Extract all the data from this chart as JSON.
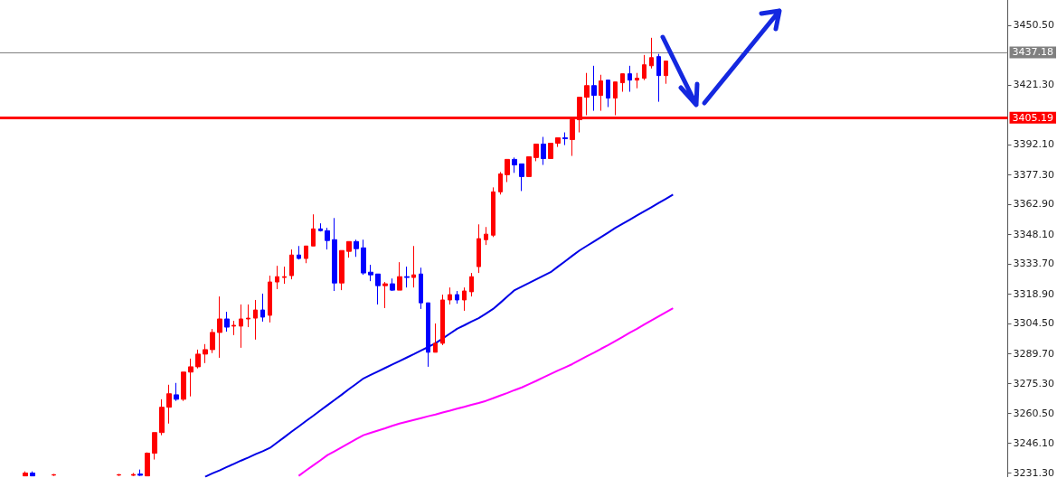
{
  "chart_data": {
    "type": "candlestick",
    "categories": [
      null,
      null,
      null,
      null,
      null,
      null,
      null,
      null,
      null,
      null,
      null,
      null,
      null,
      null,
      null,
      null,
      null,
      null,
      null,
      null,
      null,
      null,
      null,
      null,
      null,
      null,
      null,
      null,
      null,
      null,
      null,
      null,
      null,
      null,
      null,
      null,
      null,
      null,
      null,
      null,
      null,
      null,
      null,
      null,
      null,
      null,
      null,
      null,
      null,
      null,
      null,
      null,
      null,
      null,
      null,
      null,
      null,
      null,
      null,
      null,
      null,
      null,
      null,
      null,
      null,
      null,
      null,
      null,
      null,
      null,
      null,
      null,
      null,
      null,
      null,
      null,
      null,
      null,
      null,
      null,
      null,
      null,
      null,
      null,
      null,
      null,
      null,
      null,
      null,
      null,
      null,
      null,
      null,
      null,
      null,
      null,
      null,
      null,
      null,
      null,
      null,
      null,
      null,
      null,
      null,
      null,
      null,
      null,
      null,
      null,
      null,
      null,
      null,
      null,
      null,
      null,
      null,
      null,
      null,
      null,
      null,
      null,
      null,
      null,
      null,
      null,
      null,
      null,
      null,
      null,
      null,
      null,
      null,
      null,
      null,
      null,
      null,
      null,
      null,
      null
    ],
    "ohlc": [
      null,
      null,
      null,
      [
        3229.9,
        3232.1,
        3229.9,
        3231.3
      ],
      [
        3231.3,
        3232.1,
        3229.9,
        3229.9
      ],
      null,
      null,
      [
        3230.3,
        3230.8,
        3229.9,
        3230.5
      ],
      null,
      null,
      null,
      null,
      null,
      null,
      null,
      null,
      [
        3230.3,
        3230.8,
        3229.9,
        3230.5
      ],
      null,
      [
        3230.2,
        3231.3,
        3229.9,
        3230.6
      ],
      [
        3230.8,
        3233.0,
        3229.9,
        3230.2
      ],
      [
        3229.9,
        3241.4,
        3229.9,
        3241.0
      ],
      [
        3241.0,
        3251.1,
        3237.9,
        3251.1
      ],
      [
        3251.1,
        3267.4,
        3249.8,
        3263.5
      ],
      [
        3263.5,
        3274.5,
        3255.5,
        3270.1
      ],
      [
        3269.6,
        3275.4,
        3266.6,
        3267.4
      ],
      [
        3267.4,
        3280.7,
        3266.6,
        3280.7
      ],
      [
        3280.7,
        3287.3,
        3268.8,
        3283.3
      ],
      [
        3283.3,
        3291.7,
        3282.5,
        3289.5
      ],
      [
        3289.5,
        3294.4,
        3285.1,
        3291.7
      ],
      [
        3291.7,
        3301.8,
        3290.0,
        3300.1
      ],
      [
        3300.1,
        3317.7,
        3287.7,
        3306.7
      ],
      [
        3306.7,
        3310.2,
        3300.5,
        3302.7
      ],
      [
        3303.2,
        3305.8,
        3298.8,
        3303.6
      ],
      [
        3303.2,
        3313.8,
        3292.6,
        3306.7
      ],
      [
        3306.7,
        3313.8,
        3302.7,
        3307.1
      ],
      [
        3307.1,
        3316.0,
        3296.6,
        3311.1
      ],
      [
        3311.1,
        3319.1,
        3305.4,
        3307.6
      ],
      [
        3308.5,
        3327.9,
        3305.0,
        3324.8
      ],
      [
        3324.8,
        3332.7,
        3321.3,
        3327.4
      ],
      [
        3327.0,
        3332.3,
        3323.9,
        3327.4
      ],
      [
        3327.9,
        3340.7,
        3326.1,
        3338.0
      ],
      [
        3338.0,
        3342.4,
        3335.8,
        3336.3
      ],
      [
        3336.3,
        3342.4,
        3334.0,
        3342.4
      ],
      [
        3342.4,
        3357.9,
        3342.4,
        3350.8
      ],
      [
        3350.8,
        3353.5,
        3349.5,
        3349.9
      ],
      [
        3349.9,
        3351.3,
        3340.7,
        3345.1
      ],
      [
        3345.5,
        3356.1,
        3320.4,
        3324.3
      ],
      [
        3324.3,
        3340.2,
        3320.8,
        3340.2
      ],
      [
        3339.8,
        3344.6,
        3336.7,
        3344.6
      ],
      [
        3344.6,
        3345.5,
        3337.1,
        3341.1
      ],
      [
        3341.5,
        3345.5,
        3328.3,
        3329.2
      ],
      [
        3329.6,
        3333.2,
        3325.2,
        3328.3
      ],
      [
        3328.7,
        3328.7,
        3313.8,
        3323.0
      ],
      [
        3323.0,
        3324.8,
        3312.0,
        3323.9
      ],
      [
        3323.9,
        3326.5,
        3320.4,
        3320.8
      ],
      [
        3320.8,
        3334.5,
        3320.8,
        3327.4
      ],
      [
        3327.4,
        3332.3,
        3322.1,
        3327.0
      ],
      [
        3327.0,
        3342.4,
        3322.1,
        3328.3
      ],
      [
        3328.7,
        3331.8,
        3311.6,
        3314.6
      ],
      [
        3314.6,
        3314.6,
        3283.3,
        3290.4
      ],
      [
        3290.4,
        3304.5,
        3290.4,
        3294.8
      ],
      [
        3294.8,
        3318.6,
        3293.9,
        3316.0
      ],
      [
        3316.0,
        3322.1,
        3313.8,
        3318.6
      ],
      [
        3318.6,
        3320.4,
        3314.2,
        3316.0
      ],
      [
        3316.0,
        3322.1,
        3310.7,
        3320.4
      ],
      [
        3320.0,
        3329.2,
        3317.7,
        3327.4
      ],
      [
        3332.3,
        3353.0,
        3329.2,
        3346.0
      ],
      [
        3345.5,
        3351.7,
        3342.9,
        3348.2
      ],
      [
        3347.7,
        3371.1,
        3346.8,
        3368.9
      ],
      [
        3368.9,
        3378.6,
        3367.6,
        3377.7
      ],
      [
        3377.3,
        3384.8,
        3373.7,
        3384.8
      ],
      [
        3384.8,
        3385.7,
        3378.2,
        3382.1
      ],
      [
        3382.6,
        3382.6,
        3369.3,
        3376.4
      ],
      [
        3376.4,
        3386.1,
        3376.4,
        3386.1
      ],
      [
        3385.7,
        3392.3,
        3383.9,
        3392.3
      ],
      [
        3392.3,
        3395.8,
        3382.1,
        3385.2
      ],
      [
        3385.2,
        3392.7,
        3385.2,
        3392.7
      ],
      [
        3392.7,
        3395.4,
        3390.9,
        3395.4
      ],
      [
        3395.4,
        3398.0,
        3391.8,
        3394.9
      ],
      [
        3394.5,
        3404.2,
        3386.5,
        3404.2
      ],
      [
        3404.2,
        3415.2,
        3398.0,
        3415.2
      ],
      [
        3415.2,
        3427.1,
        3406.4,
        3420.9
      ],
      [
        3420.9,
        3430.6,
        3408.6,
        3416.1
      ],
      [
        3416.1,
        3426.2,
        3408.6,
        3423.2
      ],
      [
        3423.6,
        3423.6,
        3410.4,
        3414.8
      ],
      [
        3414.8,
        3422.7,
        3406.4,
        3422.7
      ],
      [
        3422.3,
        3426.7,
        3417.9,
        3426.7
      ],
      [
        3426.7,
        3430.6,
        3417.9,
        3423.6
      ],
      [
        3423.6,
        3427.1,
        3419.6,
        3424.5
      ],
      [
        3424.5,
        3435.9,
        3423.6,
        3431.1
      ],
      [
        3430.6,
        3444.3,
        3429.3,
        3434.6
      ],
      [
        3435.1,
        3436.4,
        3413.0,
        3425.8
      ],
      [
        3425.8,
        3432.9,
        3421.8,
        3432.9
      ],
      null,
      null,
      null,
      null,
      null,
      null,
      null,
      null,
      null,
      null,
      null,
      null,
      null,
      null,
      null,
      null,
      null,
      null,
      null,
      null,
      null,
      null,
      null,
      null,
      null,
      null,
      null,
      null,
      null,
      null,
      null,
      null,
      null,
      null,
      null,
      null,
      null,
      null,
      null,
      null,
      null,
      null,
      null,
      null,
      null,
      null,
      null
    ],
    "colors": [
      null,
      null,
      null,
      "#ff0000",
      "#0000ff",
      null,
      null,
      "#ff0000",
      null,
      null,
      null,
      null,
      null,
      null,
      null,
      null,
      "#ff0000",
      null,
      "#ff0000",
      "#0000ff",
      "#ff0000",
      "#ff0000",
      "#ff0000",
      "#ff0000",
      "#0000ff",
      "#ff0000",
      "#ff0000",
      "#ff0000",
      "#ff0000",
      "#ff0000",
      "#ff0000",
      "#0000ff",
      "#ff0000",
      "#ff0000",
      "#ff0000",
      "#ff0000",
      "#0000ff",
      "#ff0000",
      "#ff0000",
      "#ff0000",
      "#ff0000",
      "#0000ff",
      "#ff0000",
      "#ff0000",
      "#0000ff",
      "#0000ff",
      "#0000ff",
      "#ff0000",
      "#ff0000",
      "#0000ff",
      "#0000ff",
      "#0000ff",
      "#0000ff",
      "#ff0000",
      "#0000ff",
      "#ff0000",
      "#0000ff",
      "#ff0000",
      "#0000ff",
      "#0000ff",
      "#ff0000",
      "#ff0000",
      "#ff0000",
      "#0000ff",
      "#ff0000",
      "#ff0000",
      "#ff0000",
      "#ff0000",
      "#ff0000",
      "#ff0000",
      "#ff0000",
      "#0000ff",
      "#0000ff",
      "#ff0000",
      "#ff0000",
      "#0000ff",
      "#ff0000",
      "#ff0000",
      "#0000ff",
      "#ff0000",
      "#ff0000",
      "#ff0000",
      "#0000ff",
      "#ff0000",
      "#0000ff",
      "#ff0000",
      "#ff0000",
      "#0000ff",
      "#ff0000",
      "#ff0000",
      "#ff0000",
      "#0000ff",
      "#ff0000",
      null,
      null,
      null,
      null,
      null,
      null,
      null,
      null,
      null,
      null,
      null,
      null,
      null,
      null,
      null,
      null,
      null,
      null,
      null,
      null,
      null,
      null,
      null,
      null,
      null,
      null,
      null,
      null,
      null,
      null,
      null,
      null,
      null,
      null,
      null,
      null,
      null,
      null,
      null,
      null,
      null,
      null,
      null,
      null,
      null,
      null,
      null
    ],
    "series": [
      {
        "type": "line",
        "color": "#0000e6",
        "values": [
          null,
          null,
          null,
          null,
          null,
          null,
          null,
          null,
          null,
          null,
          null,
          null,
          null,
          null,
          null,
          null,
          null,
          null,
          null,
          null,
          null,
          null,
          null,
          null,
          null,
          null,
          null,
          null,
          3229.5,
          3231.1,
          3232.6,
          3234.2,
          3235.8,
          3237.4,
          3238.9,
          3240.5,
          3242.0,
          3243.6,
          3246.2,
          3248.8,
          3251.5,
          3254.1,
          3256.7,
          3259.3,
          3261.9,
          3264.5,
          3267.1,
          3269.7,
          3272.4,
          3275.0,
          3277.6,
          3279.3,
          3281.0,
          3282.7,
          3284.4,
          3286.1,
          3287.8,
          3289.5,
          3291.3,
          3293.0,
          3294.8,
          3297.1,
          3299.5,
          3301.9,
          3303.6,
          3305.4,
          3307.1,
          3309.3,
          3311.6,
          3314.6,
          3317.7,
          3320.8,
          3322.6,
          3324.3,
          3326.1,
          3327.9,
          3329.6,
          3332.3,
          3334.9,
          3337.6,
          3340.2,
          3342.4,
          3344.6,
          3346.8,
          3349.0,
          3351.3,
          3353.3,
          3355.3,
          3357.4,
          3359.4,
          3361.4,
          3363.5,
          3365.5,
          3367.6,
          null,
          null,
          null,
          null,
          null,
          null,
          null,
          null,
          null,
          null,
          null,
          null,
          null,
          null,
          null,
          null,
          null,
          null,
          null,
          null,
          null,
          null,
          null,
          null,
          null,
          null,
          null,
          null,
          null,
          null,
          null,
          null,
          null,
          null,
          null,
          null,
          null,
          null,
          null,
          null,
          null,
          null,
          null,
          null,
          null,
          null
        ]
      },
      {
        "type": "line",
        "color": "#ff00ff",
        "values": [
          null,
          null,
          null,
          null,
          null,
          null,
          null,
          null,
          null,
          null,
          null,
          null,
          null,
          null,
          null,
          null,
          null,
          null,
          null,
          null,
          null,
          null,
          null,
          null,
          null,
          null,
          null,
          null,
          null,
          null,
          null,
          null,
          null,
          null,
          null,
          null,
          null,
          null,
          null,
          null,
          null,
          3229.9,
          3232.5,
          3235.0,
          3237.5,
          3240.1,
          3242.0,
          3244.0,
          3245.9,
          3247.9,
          3249.8,
          3251.0,
          3252.1,
          3253.2,
          3254.4,
          3255.5,
          3256.4,
          3257.3,
          3258.2,
          3259.1,
          3259.9,
          3260.9,
          3261.8,
          3262.8,
          3263.7,
          3264.7,
          3265.6,
          3266.6,
          3267.9,
          3269.2,
          3270.5,
          3271.9,
          3273.2,
          3274.8,
          3276.4,
          3278.1,
          3279.8,
          3281.4,
          3283.0,
          3284.6,
          3286.5,
          3288.4,
          3290.2,
          3292.1,
          3293.9,
          3295.9,
          3297.9,
          3300.0,
          3301.9,
          3304.0,
          3306.0,
          3308.0,
          3310.0,
          3312.0,
          null,
          null,
          null,
          null,
          null,
          null,
          null,
          null,
          null,
          null,
          null,
          null,
          null,
          null,
          null,
          null,
          null,
          null,
          null,
          null,
          null,
          null,
          null,
          null,
          null,
          null,
          null,
          null,
          null,
          null,
          null,
          null,
          null,
          null,
          null,
          null,
          null,
          null,
          null,
          null,
          null,
          null,
          null,
          null,
          null,
          null
        ]
      }
    ],
    "ylim": [
      3229.5,
      3462.8
    ],
    "yticks": [
      {
        "value": 3450.5,
        "label": "3450.50"
      },
      {
        "value": 3421.3,
        "label": "3421.30"
      },
      {
        "value": 3392.1,
        "label": "3392.10"
      },
      {
        "value": 3377.3,
        "label": "3377.30"
      },
      {
        "value": 3362.9,
        "label": "3362.90"
      },
      {
        "value": 3348.1,
        "label": "3348.10"
      },
      {
        "value": 3333.7,
        "label": "3333.70"
      },
      {
        "value": 3318.9,
        "label": "3318.90"
      },
      {
        "value": 3304.5,
        "label": "3304.50"
      },
      {
        "value": 3289.7,
        "label": "3289.70"
      },
      {
        "value": 3275.3,
        "label": "3275.30"
      },
      {
        "value": 3260.5,
        "label": "3260.50"
      },
      {
        "value": 3246.1,
        "label": "3246.10"
      },
      {
        "value": 3231.3,
        "label": "3231.30"
      }
    ],
    "ref_lines": [
      {
        "axis": "y",
        "value": 3437.18,
        "label": "3437.18",
        "color": "#808080"
      },
      {
        "axis": "y",
        "value": 3405.19,
        "label": "3405.19",
        "color": "#ff0000"
      }
    ],
    "tick_labels": "y"
  }
}
